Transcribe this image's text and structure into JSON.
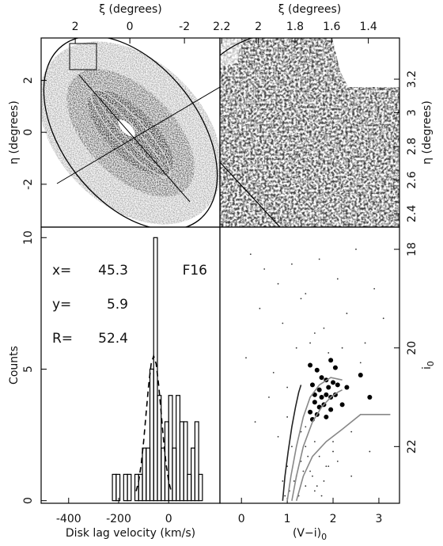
{
  "chart_data": [
    {
      "type": "image",
      "x_label": "ξ (degrees)",
      "y_label": "η (degrees)",
      "xlim": [
        3.25,
        -3.3
      ],
      "ylim": [
        -3.65,
        3.63
      ],
      "xticks": [
        2,
        0,
        -2
      ],
      "yticks": [
        2,
        0,
        -2
      ]
    },
    {
      "type": "image",
      "x_label": "ξ (degrees)",
      "y_label": "η (degrees)",
      "xlim": [
        2.21,
        1.23
      ],
      "ylim": [
        2.32,
        3.445
      ],
      "xticks": [
        2.2,
        2,
        1.8,
        1.6,
        1.4
      ],
      "yticks": [
        2.4,
        2.6,
        2.8,
        3,
        3.2
      ]
    },
    {
      "type": "histogram",
      "x_label": "Disk lag velocity (km/s)",
      "y_label": "Counts",
      "xlim": [
        -510,
        205
      ],
      "ylim": [
        -0.1,
        10.4
      ],
      "xticks": [
        -400,
        -200,
        0
      ],
      "yticks": [
        0,
        5,
        10
      ],
      "bins": [
        -225,
        -210,
        -195,
        -180,
        -165,
        -150,
        -135,
        -120,
        -105,
        -90,
        -75,
        -60,
        -45,
        -30,
        -15,
        0,
        15,
        30,
        45,
        60,
        75,
        90,
        105,
        120,
        135
      ],
      "counts": [
        1,
        1,
        0,
        1,
        1,
        0,
        1,
        1,
        2,
        2,
        5,
        10,
        4,
        2,
        3,
        4,
        2,
        4,
        3,
        3,
        1,
        2,
        3,
        1
      ],
      "color": "#000000",
      "fit": {
        "color": "#000000",
        "x": [
          -130,
          -120,
          -110,
          -100,
          -90,
          -80,
          -70,
          -60,
          -50,
          -40,
          -30,
          -20,
          -10,
          0,
          10
        ],
        "values": [
          0.36,
          0.74,
          1.37,
          2.26,
          3.34,
          4.4,
          5.2,
          5.5,
          5.2,
          4.4,
          3.34,
          2.26,
          1.37,
          0.74,
          0.36
        ]
      },
      "annotations": [
        {
          "text": "x=",
          "value": 45.3
        },
        {
          "text": "y=",
          "value": 5.9
        },
        {
          "text": "R=",
          "value": 52.4
        }
      ],
      "field": "F16"
    },
    {
      "type": "scatter",
      "x_label": "(V−i)",
      "x_label_sub": "0",
      "y_label": "i",
      "y_label_sub": "0",
      "xlim": [
        -0.47,
        3.45
      ],
      "ylim": [
        23.15,
        17.55
      ],
      "xticks": [
        0,
        1,
        2,
        3
      ],
      "yticks": [
        18,
        20,
        22
      ],
      "series": [
        {
          "mode": "small",
          "color": "#333333",
          "x": [
            0.2,
            0.5,
            0.8,
            1.1,
            1.4,
            1.7,
            2.1,
            2.5,
            2.9,
            0.4,
            0.9,
            1.3,
            1.6,
            2.3,
            2.7,
            3.1,
            0.1,
            0.7,
            1.2,
            1.9,
            2.6,
            0.6,
            1.0,
            1.5,
            1.8,
            2.2,
            0.3,
            0.8,
            1.4,
            2.0,
            2.4,
            2.8,
            1.0,
            1.1,
            1.2,
            1.3,
            1.4,
            1.5,
            1.6,
            1.7,
            1.8,
            1.9,
            2.0,
            1.05,
            1.15,
            1.25,
            1.35,
            1.45,
            1.55,
            1.65,
            1.75,
            1.85,
            0.95,
            1.3,
            1.6,
            2.1,
            2.4,
            1.0,
            1.4,
            0.9
          ],
          "values": [
            18.1,
            18.4,
            18.7,
            18.3,
            18.9,
            18.2,
            18.6,
            18.0,
            18.8,
            19.2,
            19.5,
            19.0,
            19.7,
            19.3,
            19.9,
            19.4,
            20.2,
            20.5,
            20.0,
            20.1,
            20.3,
            21.0,
            20.8,
            19.9,
            19.6,
            20.0,
            21.5,
            21.8,
            21.6,
            21.9,
            21.7,
            22.1,
            22.4,
            22.0,
            22.6,
            22.3,
            22.8,
            22.5,
            22.9,
            22.2,
            22.7,
            22.4,
            22.1,
            22.9,
            22.7,
            23.0,
            22.5,
            22.2,
            22.6,
            22.8,
            23.0,
            22.4,
            23.0,
            21.7,
            21.9,
            22.3,
            22.6,
            21.4,
            22.0,
            22.7
          ]
        },
        {
          "mode": "large",
          "color": "#000000",
          "x": [
            1.5,
            1.65,
            1.95,
            2.05,
            1.75,
            1.85,
            1.55,
            1.7,
            1.9,
            2.0,
            2.1,
            2.3,
            2.6,
            1.6,
            1.75,
            1.85,
            1.95,
            2.05,
            1.6,
            1.7,
            1.8,
            1.95,
            1.5,
            1.65,
            2.2,
            2.8,
            1.55,
            1.85
          ],
          "values": [
            20.35,
            20.45,
            20.25,
            20.4,
            20.6,
            20.65,
            20.75,
            20.85,
            20.8,
            20.7,
            20.75,
            20.8,
            20.55,
            20.95,
            21.0,
            20.95,
            21.0,
            20.95,
            21.1,
            21.2,
            21.15,
            21.25,
            21.3,
            21.35,
            21.15,
            21.0,
            21.45,
            21.4
          ]
        },
        {
          "mode": "line",
          "color": "#222222",
          "x": [
            0.9,
            0.95,
            1.02,
            1.1,
            1.18,
            1.25,
            1.3
          ],
          "values": [
            23.1,
            22.6,
            22.1,
            21.6,
            21.2,
            20.9,
            20.75
          ]
        },
        {
          "mode": "line",
          "color": "#888888",
          "x": [
            1.0,
            1.08,
            1.2,
            1.35,
            1.5,
            1.7,
            1.95,
            2.2
          ],
          "values": [
            23.1,
            22.6,
            22.0,
            21.4,
            21.0,
            20.75,
            20.6,
            20.65
          ]
        },
        {
          "mode": "line",
          "color": "#888888",
          "x": [
            1.1,
            1.2,
            1.35,
            1.55,
            1.75,
            1.95,
            2.1,
            2.2
          ],
          "values": [
            23.1,
            22.6,
            22.0,
            21.5,
            21.2,
            21.0,
            20.9,
            20.85
          ]
        },
        {
          "mode": "line",
          "color": "#888888",
          "x": [
            1.2,
            1.35,
            1.55,
            1.85,
            2.2,
            2.6,
            3.25
          ],
          "values": [
            23.1,
            22.6,
            22.2,
            21.9,
            21.65,
            21.35,
            21.35
          ]
        }
      ]
    }
  ]
}
